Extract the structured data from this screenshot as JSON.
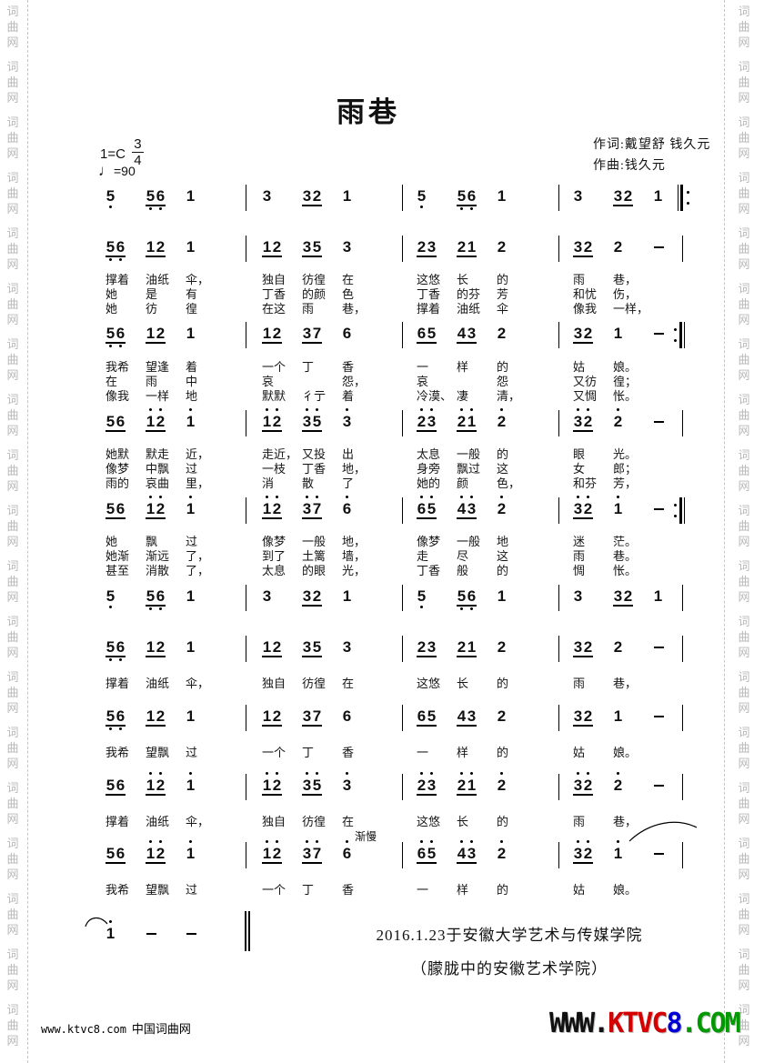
{
  "side": {
    "watermark": "词曲网"
  },
  "header": {
    "title": "雨巷",
    "key": "1=C",
    "meter": {
      "num": "3",
      "den": "4"
    },
    "tempo": {
      "note": "♩",
      "value": "=90"
    },
    "lyricist": "作词:戴望舒 钱久元",
    "composer": "作曲:钱久元"
  },
  "score": {
    "rit_label": "渐慢",
    "lines": [
      {
        "end": "repeat-begin",
        "measures": [
          [
            {
              "n": "5",
              "o": -1
            },
            {
              "n": "56",
              "u": 1,
              "o": -1
            },
            {
              "n": "1"
            }
          ],
          [
            {
              "n": "3"
            },
            {
              "n": "32",
              "u": 1
            },
            {
              "n": "1"
            }
          ],
          [
            {
              "n": "5",
              "o": -1
            },
            {
              "n": "56",
              "u": 1,
              "o": -1
            },
            {
              "n": "1"
            }
          ],
          [
            {
              "n": "3"
            },
            {
              "n": "32",
              "u": 1
            },
            {
              "n": "1"
            }
          ]
        ]
      },
      {
        "end": "bar",
        "measures": [
          [
            {
              "n": "56",
              "u": 1,
              "o": -1
            },
            {
              "n": "12",
              "u": 1
            },
            {
              "n": "1"
            }
          ],
          [
            {
              "n": "12",
              "u": 1
            },
            {
              "n": "35",
              "u": 1
            },
            {
              "n": "3"
            }
          ],
          [
            {
              "n": "23",
              "u": 1
            },
            {
              "n": "21",
              "u": 1
            },
            {
              "n": "2"
            }
          ],
          [
            {
              "n": "32",
              "u": 1
            },
            {
              "n": "2"
            },
            {
              "n": "-"
            }
          ]
        ],
        "verses": [
          [
            [
              "撑着",
              "油纸",
              "伞，"
            ],
            [
              "独自",
              "彷徨",
              "在"
            ],
            [
              "这悠",
              "长",
              "的"
            ],
            [
              "雨",
              "巷，"
            ]
          ],
          [
            [
              "她",
              "是",
              "有"
            ],
            [
              "丁香",
              "的颜",
              "色"
            ],
            [
              "丁香",
              "的芬",
              "芳"
            ],
            [
              "和忧",
              "伤，"
            ]
          ],
          [
            [
              "她",
              "彷",
              "徨"
            ],
            [
              "在这",
              "雨",
              "巷，"
            ],
            [
              "撑着",
              "油纸",
              "伞"
            ],
            [
              "像我",
              "一样，"
            ]
          ]
        ]
      },
      {
        "end": "repeat-end",
        "measures": [
          [
            {
              "n": "56",
              "u": 1,
              "o": -1
            },
            {
              "n": "12",
              "u": 1
            },
            {
              "n": "1"
            }
          ],
          [
            {
              "n": "12",
              "u": 1
            },
            {
              "n": "37",
              "u": 1
            },
            {
              "n": "6"
            }
          ],
          [
            {
              "n": "65",
              "u": 1
            },
            {
              "n": "43",
              "u": 1
            },
            {
              "n": "2"
            }
          ],
          [
            {
              "n": "32",
              "u": 1
            },
            {
              "n": "1"
            },
            {
              "n": "-"
            }
          ]
        ],
        "verses": [
          [
            [
              "我希",
              "望逢",
              "着"
            ],
            [
              "一个",
              "丁",
              "香"
            ],
            [
              "一",
              "样",
              "的"
            ],
            [
              "姑",
              "娘。"
            ]
          ],
          [
            [
              "在",
              "雨",
              "中"
            ],
            [
              "哀",
              "",
              "怨，"
            ],
            [
              "哀",
              "",
              "怨"
            ],
            [
              "又彷",
              "徨；"
            ]
          ],
          [
            [
              "像我",
              "一样",
              "地"
            ],
            [
              "默默",
              "彳亍",
              "着"
            ],
            [
              "冷漠、",
              "凄",
              "清，"
            ],
            [
              "又惆",
              "怅。"
            ]
          ]
        ]
      },
      {
        "end": "bar",
        "measures": [
          [
            {
              "n": "56",
              "u": 1
            },
            {
              "n": "12",
              "u": 1,
              "o": 1
            },
            {
              "n": "1",
              "o": 1
            }
          ],
          [
            {
              "n": "12",
              "u": 1,
              "o": 1
            },
            {
              "n": "35",
              "u": 1,
              "o": 1
            },
            {
              "n": "3",
              "o": 1
            }
          ],
          [
            {
              "n": "23",
              "u": 1,
              "o": 1
            },
            {
              "n": "21",
              "u": 1,
              "o": 1
            },
            {
              "n": "2",
              "o": 1
            }
          ],
          [
            {
              "n": "32",
              "u": 1,
              "o": 1
            },
            {
              "n": "2",
              "o": 1
            },
            {
              "n": "-"
            }
          ]
        ],
        "verses": [
          [
            [
              "她默",
              "默走",
              "近，"
            ],
            [
              "走近，",
              "又投",
              "出"
            ],
            [
              "太息",
              "一般",
              "的"
            ],
            [
              "眼",
              "光。"
            ]
          ],
          [
            [
              "像梦",
              "中飘",
              "过"
            ],
            [
              "一枝",
              "丁香",
              "地，"
            ],
            [
              "身旁",
              "飘过",
              "这"
            ],
            [
              "女",
              "郎；"
            ]
          ],
          [
            [
              "雨的",
              "哀曲",
              "里，"
            ],
            [
              "消",
              "散",
              "了"
            ],
            [
              "她的",
              "颜",
              "色，"
            ],
            [
              "和芬",
              "芳，"
            ]
          ]
        ]
      },
      {
        "end": "repeat-end",
        "measures": [
          [
            {
              "n": "56",
              "u": 1
            },
            {
              "n": "12",
              "u": 1,
              "o": 1
            },
            {
              "n": "1",
              "o": 1
            }
          ],
          [
            {
              "n": "12",
              "u": 1,
              "o": 1
            },
            {
              "n": "37",
              "u": 1,
              "o": 1
            },
            {
              "n": "6",
              "o": 1
            }
          ],
          [
            {
              "n": "65",
              "u": 1,
              "o": 1
            },
            {
              "n": "43",
              "u": 1,
              "o": 1
            },
            {
              "n": "2",
              "o": 1
            }
          ],
          [
            {
              "n": "32",
              "u": 1,
              "o": 1
            },
            {
              "n": "1",
              "o": 1
            },
            {
              "n": "-"
            }
          ]
        ],
        "verses": [
          [
            [
              "她",
              "飘",
              "过"
            ],
            [
              "像梦",
              "一般",
              "地，"
            ],
            [
              "像梦",
              "一般",
              "地"
            ],
            [
              "迷",
              "茫。"
            ]
          ],
          [
            [
              "她渐",
              "渐远",
              "了，"
            ],
            [
              "到了",
              "土篱",
              "墙，"
            ],
            [
              "走",
              "尽",
              "这"
            ],
            [
              "雨",
              "巷。"
            ]
          ],
          [
            [
              "甚至",
              "消散",
              "了，"
            ],
            [
              "太息",
              "的眼",
              "光，"
            ],
            [
              "丁香",
              "般",
              "的"
            ],
            [
              "惆",
              "怅。"
            ]
          ]
        ]
      },
      {
        "end": "bar",
        "measures": [
          [
            {
              "n": "5",
              "o": -1
            },
            {
              "n": "56",
              "u": 1,
              "o": -1
            },
            {
              "n": "1"
            }
          ],
          [
            {
              "n": "3"
            },
            {
              "n": "32",
              "u": 1
            },
            {
              "n": "1"
            }
          ],
          [
            {
              "n": "5",
              "o": -1
            },
            {
              "n": "56",
              "u": 1,
              "o": -1
            },
            {
              "n": "1"
            }
          ],
          [
            {
              "n": "3"
            },
            {
              "n": "32",
              "u": 1
            },
            {
              "n": "1"
            }
          ]
        ]
      },
      {
        "end": "bar",
        "measures": [
          [
            {
              "n": "56",
              "u": 1,
              "o": -1
            },
            {
              "n": "12",
              "u": 1
            },
            {
              "n": "1"
            }
          ],
          [
            {
              "n": "12",
              "u": 1
            },
            {
              "n": "35",
              "u": 1
            },
            {
              "n": "3"
            }
          ],
          [
            {
              "n": "23",
              "u": 1
            },
            {
              "n": "21",
              "u": 1
            },
            {
              "n": "2"
            }
          ],
          [
            {
              "n": "32",
              "u": 1
            },
            {
              "n": "2"
            },
            {
              "n": "-"
            }
          ]
        ],
        "verses": [
          [
            [
              "撑着",
              "油纸",
              "伞，"
            ],
            [
              "独自",
              "彷徨",
              "在"
            ],
            [
              "这悠",
              "长",
              "的"
            ],
            [
              "雨",
              "巷，"
            ]
          ]
        ]
      },
      {
        "end": "bar",
        "measures": [
          [
            {
              "n": "56",
              "u": 1,
              "o": -1
            },
            {
              "n": "12",
              "u": 1
            },
            {
              "n": "1"
            }
          ],
          [
            {
              "n": "12",
              "u": 1
            },
            {
              "n": "37",
              "u": 1
            },
            {
              "n": "6"
            }
          ],
          [
            {
              "n": "65",
              "u": 1
            },
            {
              "n": "43",
              "u": 1
            },
            {
              "n": "2"
            }
          ],
          [
            {
              "n": "32",
              "u": 1
            },
            {
              "n": "1"
            },
            {
              "n": "-"
            }
          ]
        ],
        "verses": [
          [
            [
              "我希",
              "望飘",
              "过"
            ],
            [
              "一个",
              "丁",
              "香"
            ],
            [
              "一",
              "样",
              "的"
            ],
            [
              "姑",
              "娘。"
            ]
          ]
        ]
      },
      {
        "end": "bar",
        "measures": [
          [
            {
              "n": "56",
              "u": 1
            },
            {
              "n": "12",
              "u": 1,
              "o": 1
            },
            {
              "n": "1",
              "o": 1
            }
          ],
          [
            {
              "n": "12",
              "u": 1,
              "o": 1
            },
            {
              "n": "35",
              "u": 1,
              "o": 1
            },
            {
              "n": "3",
              "o": 1
            }
          ],
          [
            {
              "n": "23",
              "u": 1,
              "o": 1
            },
            {
              "n": "21",
              "u": 1,
              "o": 1
            },
            {
              "n": "2",
              "o": 1
            }
          ],
          [
            {
              "n": "32",
              "u": 1,
              "o": 1
            },
            {
              "n": "2",
              "o": 1
            },
            {
              "n": "-"
            }
          ]
        ],
        "verses": [
          [
            [
              "撑着",
              "油纸",
              "伞，"
            ],
            [
              "独自",
              "彷徨",
              "在"
            ],
            [
              "这悠",
              "长",
              "的"
            ],
            [
              "雨",
              "巷，"
            ]
          ]
        ]
      },
      {
        "end": "bar",
        "measures": [
          [
            {
              "n": "56",
              "u": 1
            },
            {
              "n": "12",
              "u": 1,
              "o": 1
            },
            {
              "n": "1",
              "o": 1
            }
          ],
          [
            {
              "n": "12",
              "u": 1,
              "o": 1
            },
            {
              "n": "37",
              "u": 1,
              "o": 1
            },
            {
              "n": "6",
              "o": 1
            }
          ],
          [
            {
              "n": "65",
              "u": 1,
              "o": 1
            },
            {
              "n": "43",
              "u": 1,
              "o": 1
            },
            {
              "n": "2",
              "o": 1
            }
          ],
          [
            {
              "n": "32",
              "u": 1,
              "o": 1
            },
            {
              "n": "1",
              "o": 1
            },
            {
              "n": "-"
            }
          ]
        ],
        "verses": [
          [
            [
              "我希",
              "望飘",
              "过"
            ],
            [
              "一个",
              "丁",
              "香"
            ],
            [
              "一",
              "样",
              "的"
            ],
            [
              "姑",
              "娘。"
            ]
          ]
        ]
      }
    ],
    "coda": {
      "beats": [
        {
          "n": "1",
          "o": 1
        },
        {
          "n": "-"
        },
        {
          "n": "-"
        }
      ],
      "end": "final"
    },
    "dedication": [
      "2016.1.23于安徽大学艺术与传媒学院",
      "（朦胧中的安徽艺术学院）"
    ]
  },
  "footer": {
    "left_url": "www.ktvc8.com",
    "left_site": "中国词曲网",
    "logo": {
      "www": "WWW.",
      "ktvc": "KTVC",
      "eight": "8",
      "com": ".COM"
    },
    "logo_colors": {
      "www": "#111111",
      "ktvc": "#d40000",
      "eight": "#0000d4",
      "com": "#009900"
    }
  }
}
